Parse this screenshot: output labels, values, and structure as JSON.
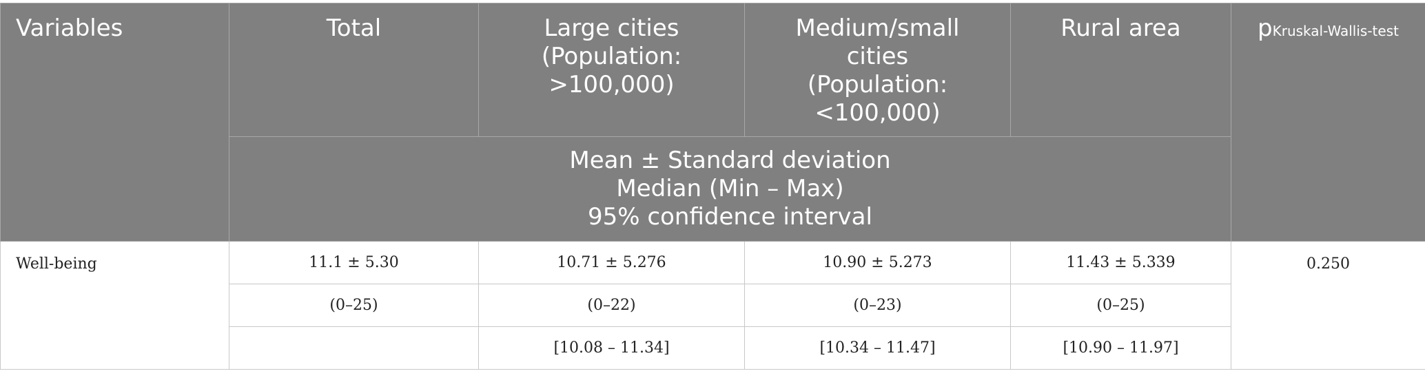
{
  "header": {
    "variables": "Variables",
    "total": "Total",
    "large_cities": [
      "Large cities",
      "(Population:",
      ">100,000)"
    ],
    "medium_small_cities": [
      "Medium/small",
      "cities",
      "(Population:",
      "<100,000)"
    ],
    "rural_area": "Rural area",
    "p_main": "p",
    "p_sub": "Kruskal-Wallis-test",
    "stats_description": [
      "Mean ± Standard deviation",
      "Median (Min – Max)",
      "95% confidence interval"
    ]
  },
  "rows": [
    {
      "variable": "Well-being",
      "p_value": "0.250",
      "mean_sd": [
        "11.1 ± 5.30",
        "10.71 ± 5.276",
        "10.90 ± 5.273",
        "11.43 ± 5.339"
      ],
      "range": [
        "(0–25)",
        "(0–22)",
        "(0–23)",
        "(0–25)"
      ],
      "ci95": [
        "",
        "[10.08 – 11.34]",
        "[10.34 – 11.47]",
        "[10.90 – 11.97]"
      ]
    }
  ]
}
